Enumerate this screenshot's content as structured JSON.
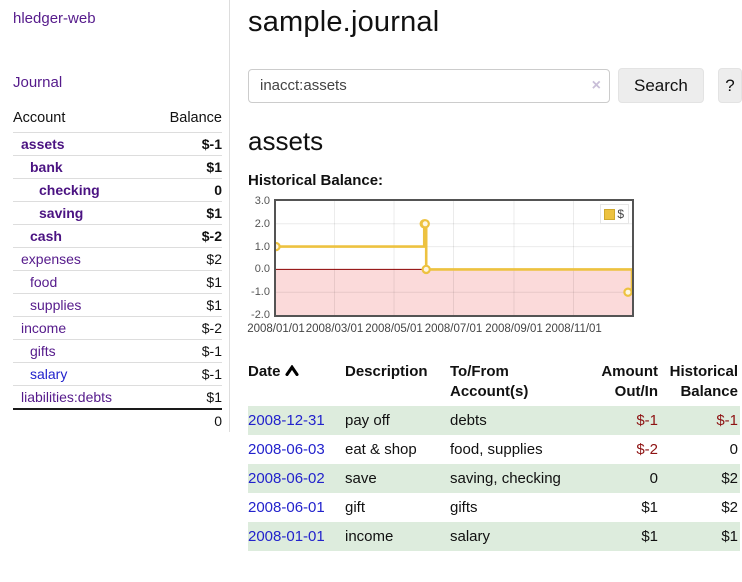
{
  "app": {
    "brand": "hledger-web"
  },
  "sidebar": {
    "nav_journal": "Journal",
    "accounts_table": {
      "headers": [
        "Account",
        "Balance"
      ],
      "rows": [
        {
          "name": "assets",
          "indent": 0,
          "bold": true,
          "balance": "$-1",
          "balance_class": "neg-strong"
        },
        {
          "name": "bank",
          "indent": 1,
          "bold": true,
          "balance": "$1",
          "balance_class": ""
        },
        {
          "name": "checking",
          "indent": 2,
          "bold": true,
          "balance": "0",
          "balance_class": ""
        },
        {
          "name": "saving",
          "indent": 2,
          "bold": true,
          "balance": "$1",
          "balance_class": ""
        },
        {
          "name": "cash",
          "indent": 1,
          "bold": true,
          "balance": "$-2",
          "balance_class": "neg-strong"
        },
        {
          "name": "expenses",
          "indent": 0,
          "bold": false,
          "balance": "$2",
          "balance_class": ""
        },
        {
          "name": "food",
          "indent": 1,
          "bold": false,
          "balance": "$1",
          "balance_class": ""
        },
        {
          "name": "supplies",
          "indent": 1,
          "bold": false,
          "balance": "$1",
          "balance_class": ""
        },
        {
          "name": "income",
          "indent": 0,
          "bold": false,
          "balance": "$-2",
          "balance_class": "neg-light"
        },
        {
          "name": "gifts",
          "indent": 1,
          "bold": false,
          "balance": "$-1",
          "balance_class": "neg-light"
        },
        {
          "name": "salary",
          "indent": 1,
          "bold": false,
          "name_class": "blue",
          "balance": "$-1",
          "balance_class": "neg-light"
        },
        {
          "name": "liabilities:debts",
          "indent": 0,
          "bold": false,
          "balance": "$1",
          "balance_class": ""
        }
      ],
      "total": "0"
    }
  },
  "header": {
    "title": "sample.journal"
  },
  "search": {
    "value": "inacct:assets",
    "clear_icon": "×",
    "button_label": "Search",
    "help_label": "?"
  },
  "account_page": {
    "heading": "assets",
    "chart_label": "Historical Balance:"
  },
  "chart_data": {
    "type": "line",
    "style": "steps",
    "title": "Historical Balance:",
    "legend": {
      "position": "top-right",
      "label": "$"
    },
    "series": [
      {
        "name": "$",
        "color": "#edc240",
        "points": [
          {
            "x": "2008-01-01",
            "y": 1
          },
          {
            "x": "2008-06-01",
            "y": 2
          },
          {
            "x": "2008-06-02",
            "y": 2
          },
          {
            "x": "2008-06-03",
            "y": 0
          },
          {
            "x": "2008-12-31",
            "y": -1
          }
        ]
      }
    ],
    "xrange": [
      "2008-01-01",
      "2008-12-31"
    ],
    "ylim": [
      -2,
      3
    ],
    "yticks": [
      "3.0",
      "2.0",
      "1.0",
      "0.0",
      "-1.0",
      "-2.0"
    ],
    "xticks": [
      "2008/01/01",
      "2008/03/01",
      "2008/05/01",
      "2008/07/01",
      "2008/09/01",
      "2008/11/01"
    ],
    "grid": true,
    "zero_line_color": "#8b0000",
    "negative_region_color": "#fbdada"
  },
  "register": {
    "headers": [
      "Date",
      "Description",
      "To/From Account(s)",
      "Amount Out/In",
      "Historical Balance"
    ],
    "rows": [
      {
        "date": "2008-12-31",
        "description": "pay off",
        "accounts": "debts",
        "amount": "$-1",
        "amount_class": "neg-strong",
        "balance": "$-1",
        "balance_class": "neg-strong",
        "alt": true
      },
      {
        "date": "2008-06-03",
        "description": "eat & shop",
        "accounts": "food, supplies",
        "amount": "$-2",
        "amount_class": "neg-strong",
        "balance": "0",
        "balance_class": "",
        "alt": false
      },
      {
        "date": "2008-06-02",
        "description": "save",
        "accounts": "saving, checking",
        "amount": "0",
        "amount_class": "",
        "balance": "$2",
        "balance_class": "",
        "alt": true
      },
      {
        "date": "2008-06-01",
        "description": "gift",
        "accounts": "gifts",
        "amount": "$1",
        "amount_class": "",
        "balance": "$2",
        "balance_class": "",
        "alt": false
      },
      {
        "date": "2008-01-01",
        "description": "income",
        "accounts": "salary",
        "amount": "$1",
        "amount_class": "",
        "balance": "$1",
        "balance_class": "",
        "alt": true
      }
    ]
  }
}
